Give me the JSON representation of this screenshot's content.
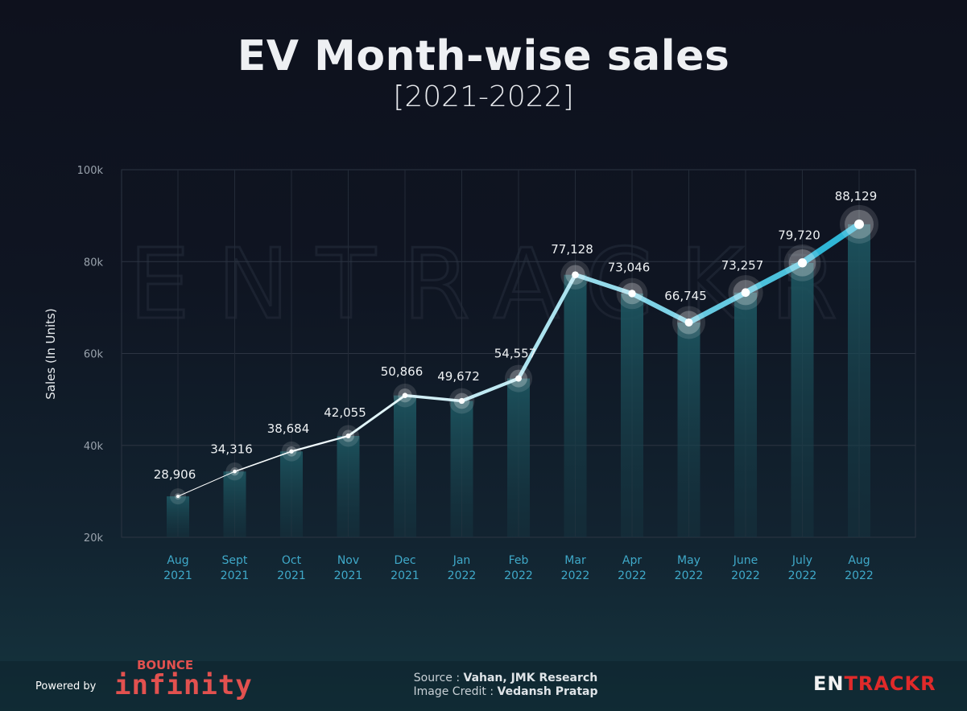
{
  "chart_data": {
    "type": "bar+line",
    "title": "EV Month-wise sales",
    "subtitle": "[2021-2022]",
    "ylabel": "Sales (In Units)",
    "ylim": [
      20000,
      100000
    ],
    "yticks": [
      20000,
      40000,
      60000,
      80000,
      100000
    ],
    "ytick_labels": [
      "20k",
      "40k",
      "60k",
      "80k",
      "100k"
    ],
    "grid": true,
    "categories": [
      [
        "Aug",
        "2021"
      ],
      [
        "Sept",
        "2021"
      ],
      [
        "Oct",
        "2021"
      ],
      [
        "Nov",
        "2021"
      ],
      [
        "Dec",
        "2021"
      ],
      [
        "Jan",
        "2022"
      ],
      [
        "Feb",
        "2022"
      ],
      [
        "Mar",
        "2022"
      ],
      [
        "Apr",
        "2022"
      ],
      [
        "May",
        "2022"
      ],
      [
        "June",
        "2022"
      ],
      [
        "July",
        "2022"
      ],
      [
        "Aug",
        "2022"
      ]
    ],
    "values": [
      28906,
      34316,
      38684,
      42055,
      50866,
      49672,
      54557,
      77128,
      73046,
      66745,
      73257,
      79720,
      88129
    ],
    "data_labels": [
      "28,906",
      "34,316",
      "38,684",
      "42,055",
      "50,866",
      "49,672",
      "54,557",
      "77,128",
      "73,046",
      "66,745",
      "73,257",
      "79,720",
      "88,129"
    ],
    "watermark": "ENTRACKR",
    "colors": {
      "line_start": "#ffffff",
      "line_end": "#2fb6d6",
      "bar": "#1c5a66",
      "tick_label": "#3fa9c9"
    }
  },
  "footer": {
    "powered_by": "Powered by",
    "sponsor_top": "BOUNCE",
    "sponsor_main": "infinity",
    "source_label": "Source : ",
    "source_value": "Vahan, JMK Research",
    "credit_label": "Image Credit : ",
    "credit_value": "Vedansh Pratap",
    "brand_a": "EN",
    "brand_b": "TRACKR",
    "brand_color": "#e02a2a"
  }
}
